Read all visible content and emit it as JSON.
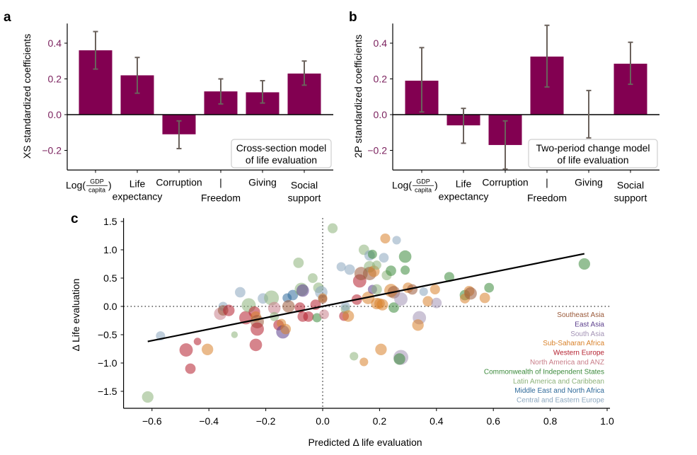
{
  "colors": {
    "bar": "#820051",
    "errorbar": "#6b625c",
    "tick_label_a": "#7a1f5c",
    "axis": "#000000",
    "regions": {
      "Southeast Asia": "#9a5a3a",
      "East Asia": "#5b3e8c",
      "South Asia": "#a393b5",
      "Sub-Saharan Africa": "#d9822b",
      "Western Europe": "#b41f2e",
      "North America and ANZ": "#c97f8a",
      "Commonwealth of Independent States": "#3c8a3c",
      "Latin America and Caribbean": "#8db27a",
      "Middle East and North Africa": "#2f6a9a",
      "Central and Eastern Europe": "#8aa6be"
    }
  },
  "chart_data": [
    {
      "panel_label": "a",
      "type": "bar",
      "title": "",
      "ylabel": "XS standardized coefficients",
      "xlabel": "",
      "ylim": [
        -0.31,
        0.51
      ],
      "yticks": [
        -0.2,
        0.0,
        0.2,
        0.4
      ],
      "ytick_labels": [
        "−0.2",
        "0.0",
        "0.2",
        "0.4"
      ],
      "categories": [
        {
          "line1": "Log(",
          "frac_num": "GDP",
          "frac_den": "capita",
          "line1_end": ")",
          "line2": ""
        },
        {
          "line1": "Life",
          "line2": "expectancy"
        },
        {
          "line1": "Corruption",
          "line2": ""
        },
        {
          "line1": "|",
          "line2": "Freedom"
        },
        {
          "line1": "Giving",
          "line2": ""
        },
        {
          "line1": "Social",
          "line2": "support"
        }
      ],
      "values": [
        0.36,
        0.22,
        -0.11,
        0.13,
        0.125,
        0.23
      ],
      "err_low": [
        0.255,
        0.12,
        -0.19,
        0.06,
        0.065,
        0.165
      ],
      "err_high": [
        0.465,
        0.32,
        -0.035,
        0.2,
        0.19,
        0.3
      ],
      "annotation": [
        "Cross-section model",
        "of life evaluation"
      ],
      "legend": "lower-right"
    },
    {
      "panel_label": "b",
      "type": "bar",
      "title": "",
      "ylabel": "2P standardized coefficients",
      "xlabel": "",
      "ylim": [
        -0.31,
        0.51
      ],
      "yticks": [
        -0.2,
        0.0,
        0.2,
        0.4
      ],
      "ytick_labels": [
        "−0.2",
        "0.0",
        "0.2",
        "0.4"
      ],
      "categories": [
        {
          "line1": "Log(",
          "frac_num": "GDP",
          "frac_den": "capita",
          "line1_end": ")",
          "line2": ""
        },
        {
          "line1": "Life",
          "line2": "expectancy"
        },
        {
          "line1": "Corruption",
          "line2": ""
        },
        {
          "line1": "|",
          "line2": "Freedom"
        },
        {
          "line1": "Giving",
          "line2": ""
        },
        {
          "line1": "Social",
          "line2": "support"
        }
      ],
      "values": [
        0.19,
        -0.06,
        -0.17,
        0.325,
        0.0,
        0.285
      ],
      "err_low": [
        0.015,
        -0.16,
        -0.305,
        0.155,
        -0.13,
        0.17
      ],
      "err_high": [
        0.375,
        0.035,
        -0.035,
        0.5,
        0.135,
        0.405
      ],
      "annotation": [
        "Two-period change model",
        "of life evaluation"
      ],
      "legend": "lower-right"
    },
    {
      "panel_label": "c",
      "type": "scatter",
      "title": "",
      "xlabel": "Predicted Δ life evaluation",
      "ylabel": "Δ Life evaluation",
      "xlim": [
        -0.7,
        1.01
      ],
      "ylim": [
        -1.8,
        1.56
      ],
      "xticks": [
        -0.6,
        -0.4,
        -0.2,
        0.0,
        0.2,
        0.4,
        0.6,
        0.8,
        1.0
      ],
      "xtick_labels": [
        "−0.6",
        "−0.4",
        "−0.2",
        "0.0",
        "0.2",
        "0.4",
        "0.6",
        "0.8",
        "1.0"
      ],
      "yticks": [
        -1.5,
        -1.0,
        -0.5,
        0.0,
        0.5,
        1.0,
        1.5
      ],
      "ytick_labels": [
        "−1.5",
        "−1.0",
        "−0.5",
        "0.0",
        "0.5",
        "1.0",
        "1.5"
      ],
      "fit_line": {
        "x": [
          -0.615,
          0.92
        ],
        "y": [
          -0.62,
          0.93
        ]
      },
      "reference_lines": {
        "x": 0.0,
        "y": 0.0,
        "style": "dotted"
      },
      "legend_position": "lower-right",
      "legend": [
        "Southeast Asia",
        "East Asia",
        "South Asia",
        "Sub-Saharan Africa",
        "Western Europe",
        "North America and ANZ",
        "Commonwealth of Independent States",
        "Latin America and Caribbean",
        "Middle East and North Africa",
        "Central and Eastern Europe"
      ],
      "points": [
        {
          "x": -0.615,
          "y": -1.6,
          "size": 2,
          "region": "Latin America and Caribbean"
        },
        {
          "x": -0.57,
          "y": -0.52,
          "size": 1,
          "region": "Central and Eastern Europe"
        },
        {
          "x": -0.48,
          "y": -0.77,
          "size": 3,
          "region": "Western Europe"
        },
        {
          "x": -0.465,
          "y": -1.1,
          "size": 1.5,
          "region": "Western Europe"
        },
        {
          "x": -0.44,
          "y": -0.62,
          "size": 0.5,
          "region": "Western Europe"
        },
        {
          "x": -0.405,
          "y": -0.76,
          "size": 2,
          "region": "Sub-Saharan Africa"
        },
        {
          "x": -0.36,
          "y": -0.13,
          "size": 2.5,
          "region": "North America and ANZ"
        },
        {
          "x": -0.35,
          "y": 0.0,
          "size": 1,
          "region": "Central and Eastern Europe"
        },
        {
          "x": -0.35,
          "y": -0.07,
          "size": 1.5,
          "region": "Southeast Asia"
        },
        {
          "x": -0.33,
          "y": -0.07,
          "size": 2,
          "region": "Western Europe"
        },
        {
          "x": -0.31,
          "y": -0.5,
          "size": 0.3,
          "region": "Latin America and Caribbean"
        },
        {
          "x": -0.29,
          "y": 0.25,
          "size": 1.5,
          "region": "Central and Eastern Europe"
        },
        {
          "x": -0.27,
          "y": -0.2,
          "size": 3,
          "region": "Western Europe"
        },
        {
          "x": -0.26,
          "y": 0.02,
          "size": 3.5,
          "region": "Latin America and Caribbean"
        },
        {
          "x": -0.24,
          "y": -0.1,
          "size": 2,
          "region": "Western Europe"
        },
        {
          "x": -0.235,
          "y": -0.18,
          "size": 1.5,
          "region": "Sub-Saharan Africa"
        },
        {
          "x": -0.23,
          "y": -0.27,
          "size": 3,
          "region": "Southeast Asia"
        },
        {
          "x": -0.23,
          "y": -0.4,
          "size": 3,
          "region": "Western Europe"
        },
        {
          "x": -0.235,
          "y": -0.68,
          "size": 2.5,
          "region": "Western Europe"
        },
        {
          "x": -0.21,
          "y": 0.14,
          "size": 1.5,
          "region": "Central and Eastern Europe"
        },
        {
          "x": -0.18,
          "y": 0.15,
          "size": 4,
          "region": "Latin America and Caribbean"
        },
        {
          "x": -0.17,
          "y": -0.03,
          "size": 2.5,
          "region": "North America and ANZ"
        },
        {
          "x": -0.17,
          "y": -0.18,
          "size": 1,
          "region": "Latin America and Caribbean"
        },
        {
          "x": -0.155,
          "y": -0.33,
          "size": 1.5,
          "region": "Western Europe"
        },
        {
          "x": -0.145,
          "y": -0.3,
          "size": 1,
          "region": "Sub-Saharan Africa"
        },
        {
          "x": -0.14,
          "y": -0.45,
          "size": 3,
          "region": "East Asia"
        },
        {
          "x": -0.13,
          "y": -0.4,
          "size": 1.5,
          "region": "Sub-Saharan Africa"
        },
        {
          "x": -0.125,
          "y": 0.15,
          "size": 1,
          "region": "Middle East and North Africa"
        },
        {
          "x": -0.12,
          "y": 0.0,
          "size": 2.5,
          "region": "Southeast Asia"
        },
        {
          "x": -0.105,
          "y": 0.2,
          "size": 1.5,
          "region": "Middle East and North Africa"
        },
        {
          "x": -0.085,
          "y": 0.77,
          "size": 1.5,
          "region": "Latin America and Caribbean"
        },
        {
          "x": -0.08,
          "y": -0.02,
          "size": 1.5,
          "region": "Western Europe"
        },
        {
          "x": -0.075,
          "y": 0.3,
          "size": 3,
          "region": "Latin America and Caribbean"
        },
        {
          "x": -0.07,
          "y": 0.28,
          "size": 2.5,
          "region": "East Asia"
        },
        {
          "x": -0.07,
          "y": -0.18,
          "size": 1.5,
          "region": "Western Europe"
        },
        {
          "x": -0.05,
          "y": -0.18,
          "size": 1.5,
          "region": "Western Europe"
        },
        {
          "x": -0.035,
          "y": 0.5,
          "size": 1.2,
          "region": "Latin America and Caribbean"
        },
        {
          "x": -0.025,
          "y": 0.03,
          "size": 1.5,
          "region": "Western Europe"
        },
        {
          "x": -0.02,
          "y": -0.2,
          "size": 1,
          "region": "Commonwealth of Independent States"
        },
        {
          "x": -0.015,
          "y": 0.33,
          "size": 1.5,
          "region": "Latin America and Caribbean"
        },
        {
          "x": -0.005,
          "y": 0.25,
          "size": 2.5,
          "region": "Central and Eastern Europe"
        },
        {
          "x": 0.0,
          "y": 0.15,
          "size": 1,
          "region": "Sub-Saharan Africa"
        },
        {
          "x": 0.0,
          "y": 0.13,
          "size": 1,
          "region": "Southeast Asia"
        },
        {
          "x": 0.005,
          "y": -0.14,
          "size": 1.2,
          "region": "North America and ANZ"
        },
        {
          "x": 0.035,
          "y": 1.38,
          "size": 1.3,
          "region": "Latin America and Caribbean"
        },
        {
          "x": 0.075,
          "y": -0.17,
          "size": 1.2,
          "region": "Western Europe"
        },
        {
          "x": 0.08,
          "y": -0.05,
          "size": 1,
          "region": "Latin America and Caribbean"
        },
        {
          "x": 0.08,
          "y": 0.0,
          "size": 1,
          "region": "Central and Eastern Europe"
        },
        {
          "x": 0.09,
          "y": -0.17,
          "size": 2,
          "region": "Sub-Saharan Africa"
        },
        {
          "x": 0.065,
          "y": 0.7,
          "size": 1,
          "region": "Central and Eastern Europe"
        },
        {
          "x": 0.095,
          "y": 0.65,
          "size": 1.5,
          "region": "Central and Eastern Europe"
        },
        {
          "x": 0.11,
          "y": -0.88,
          "size": 0.8,
          "region": "Latin America and Caribbean"
        },
        {
          "x": 0.12,
          "y": 0.12,
          "size": 1.5,
          "region": "Western Europe"
        },
        {
          "x": 0.13,
          "y": 0.45,
          "size": 3,
          "region": "Western Europe"
        },
        {
          "x": 0.135,
          "y": 0.58,
          "size": 3,
          "region": "Southeast Asia"
        },
        {
          "x": 0.145,
          "y": 1.0,
          "size": 1.5,
          "region": "Latin America and Caribbean"
        },
        {
          "x": 0.145,
          "y": -0.98,
          "size": 0.8,
          "region": "Sub-Saharan Africa"
        },
        {
          "x": 0.16,
          "y": 0.15,
          "size": 2.5,
          "region": "Sub-Saharan Africa"
        },
        {
          "x": 0.165,
          "y": 0.9,
          "size": 1.5,
          "region": "Central and Eastern Europe"
        },
        {
          "x": 0.165,
          "y": 0.7,
          "size": 2,
          "region": "Latin America and Caribbean"
        },
        {
          "x": 0.165,
          "y": 0.58,
          "size": 3,
          "region": "Southeast Asia"
        },
        {
          "x": 0.175,
          "y": 0.92,
          "size": 1,
          "region": "Commonwealth of Independent States"
        },
        {
          "x": 0.175,
          "y": 0.3,
          "size": 1,
          "region": "East Asia"
        },
        {
          "x": 0.18,
          "y": 0.62,
          "size": 2,
          "region": "Sub-Saharan Africa"
        },
        {
          "x": 0.19,
          "y": 0.3,
          "size": 1.5,
          "region": "Latin America and Caribbean"
        },
        {
          "x": 0.19,
          "y": 0.73,
          "size": 1,
          "region": "Latin America and Caribbean"
        },
        {
          "x": 0.19,
          "y": 0.05,
          "size": 2,
          "region": "Sub-Saharan Africa"
        },
        {
          "x": 0.2,
          "y": 0.05,
          "size": 1.5,
          "region": "Sub-Saharan Africa"
        },
        {
          "x": 0.205,
          "y": -0.76,
          "size": 2,
          "region": "Sub-Saharan Africa"
        },
        {
          "x": 0.21,
          "y": 0.03,
          "size": 2,
          "region": "Sub-Saharan Africa"
        },
        {
          "x": 0.215,
          "y": 0.86,
          "size": 1.2,
          "region": "Central and Eastern Europe"
        },
        {
          "x": 0.22,
          "y": 1.2,
          "size": 1.3,
          "region": "Sub-Saharan Africa"
        },
        {
          "x": 0.225,
          "y": 0.55,
          "size": 1.3,
          "region": "Latin America and Caribbean"
        },
        {
          "x": 0.24,
          "y": 0.63,
          "size": 1.5,
          "region": "Commonwealth of Independent States"
        },
        {
          "x": 0.24,
          "y": 0.28,
          "size": 3,
          "region": "Sub-Saharan Africa"
        },
        {
          "x": 0.25,
          "y": 0.25,
          "size": 2.5,
          "region": "Southeast Asia"
        },
        {
          "x": 0.25,
          "y": -0.02,
          "size": 1.5,
          "region": "Commonwealth of Independent States"
        },
        {
          "x": 0.26,
          "y": 1.17,
          "size": 0.8,
          "region": "Central and Eastern Europe"
        },
        {
          "x": 0.275,
          "y": -0.9,
          "size": 4,
          "region": "South Asia"
        },
        {
          "x": 0.27,
          "y": -0.93,
          "size": 2,
          "region": "Commonwealth of Independent States"
        },
        {
          "x": 0.275,
          "y": 0.13,
          "size": 3,
          "region": "South Asia"
        },
        {
          "x": 0.29,
          "y": 0.88,
          "size": 2.5,
          "region": "Commonwealth of Independent States"
        },
        {
          "x": 0.29,
          "y": 0.64,
          "size": 1,
          "region": "Commonwealth of Independent States"
        },
        {
          "x": 0.3,
          "y": 0.33,
          "size": 1.5,
          "region": "Sub-Saharan Africa"
        },
        {
          "x": 0.315,
          "y": 0.3,
          "size": 1.5,
          "region": "Southeast Asia"
        },
        {
          "x": 0.34,
          "y": -0.2,
          "size": 3,
          "region": "South Asia"
        },
        {
          "x": 0.335,
          "y": -0.33,
          "size": 2,
          "region": "Sub-Saharan Africa"
        },
        {
          "x": 0.355,
          "y": 0.26,
          "size": 0.8,
          "region": "Central and Eastern Europe"
        },
        {
          "x": 0.37,
          "y": 0.09,
          "size": 1.5,
          "region": "Sub-Saharan Africa"
        },
        {
          "x": 0.395,
          "y": 0.3,
          "size": 1.3,
          "region": "Sub-Saharan Africa"
        },
        {
          "x": 0.4,
          "y": 0.06,
          "size": 1.5,
          "region": "South Asia"
        },
        {
          "x": 0.445,
          "y": 0.52,
          "size": 1.3,
          "region": "Commonwealth of Independent States"
        },
        {
          "x": 0.5,
          "y": 0.2,
          "size": 1.5,
          "region": "Commonwealth of Independent States"
        },
        {
          "x": 0.5,
          "y": 0.14,
          "size": 1.3,
          "region": "Sub-Saharan Africa"
        },
        {
          "x": 0.515,
          "y": 0.27,
          "size": 1.5,
          "region": "Sub-Saharan Africa"
        },
        {
          "x": 0.52,
          "y": 0.23,
          "size": 2.5,
          "region": "Southeast Asia"
        },
        {
          "x": 0.57,
          "y": 0.15,
          "size": 1.5,
          "region": "Sub-Saharan Africa"
        },
        {
          "x": 0.585,
          "y": 0.33,
          "size": 1.2,
          "region": "Commonwealth of Independent States"
        },
        {
          "x": 0.92,
          "y": 0.75,
          "size": 2,
          "region": "Commonwealth of Independent States"
        }
      ]
    }
  ]
}
